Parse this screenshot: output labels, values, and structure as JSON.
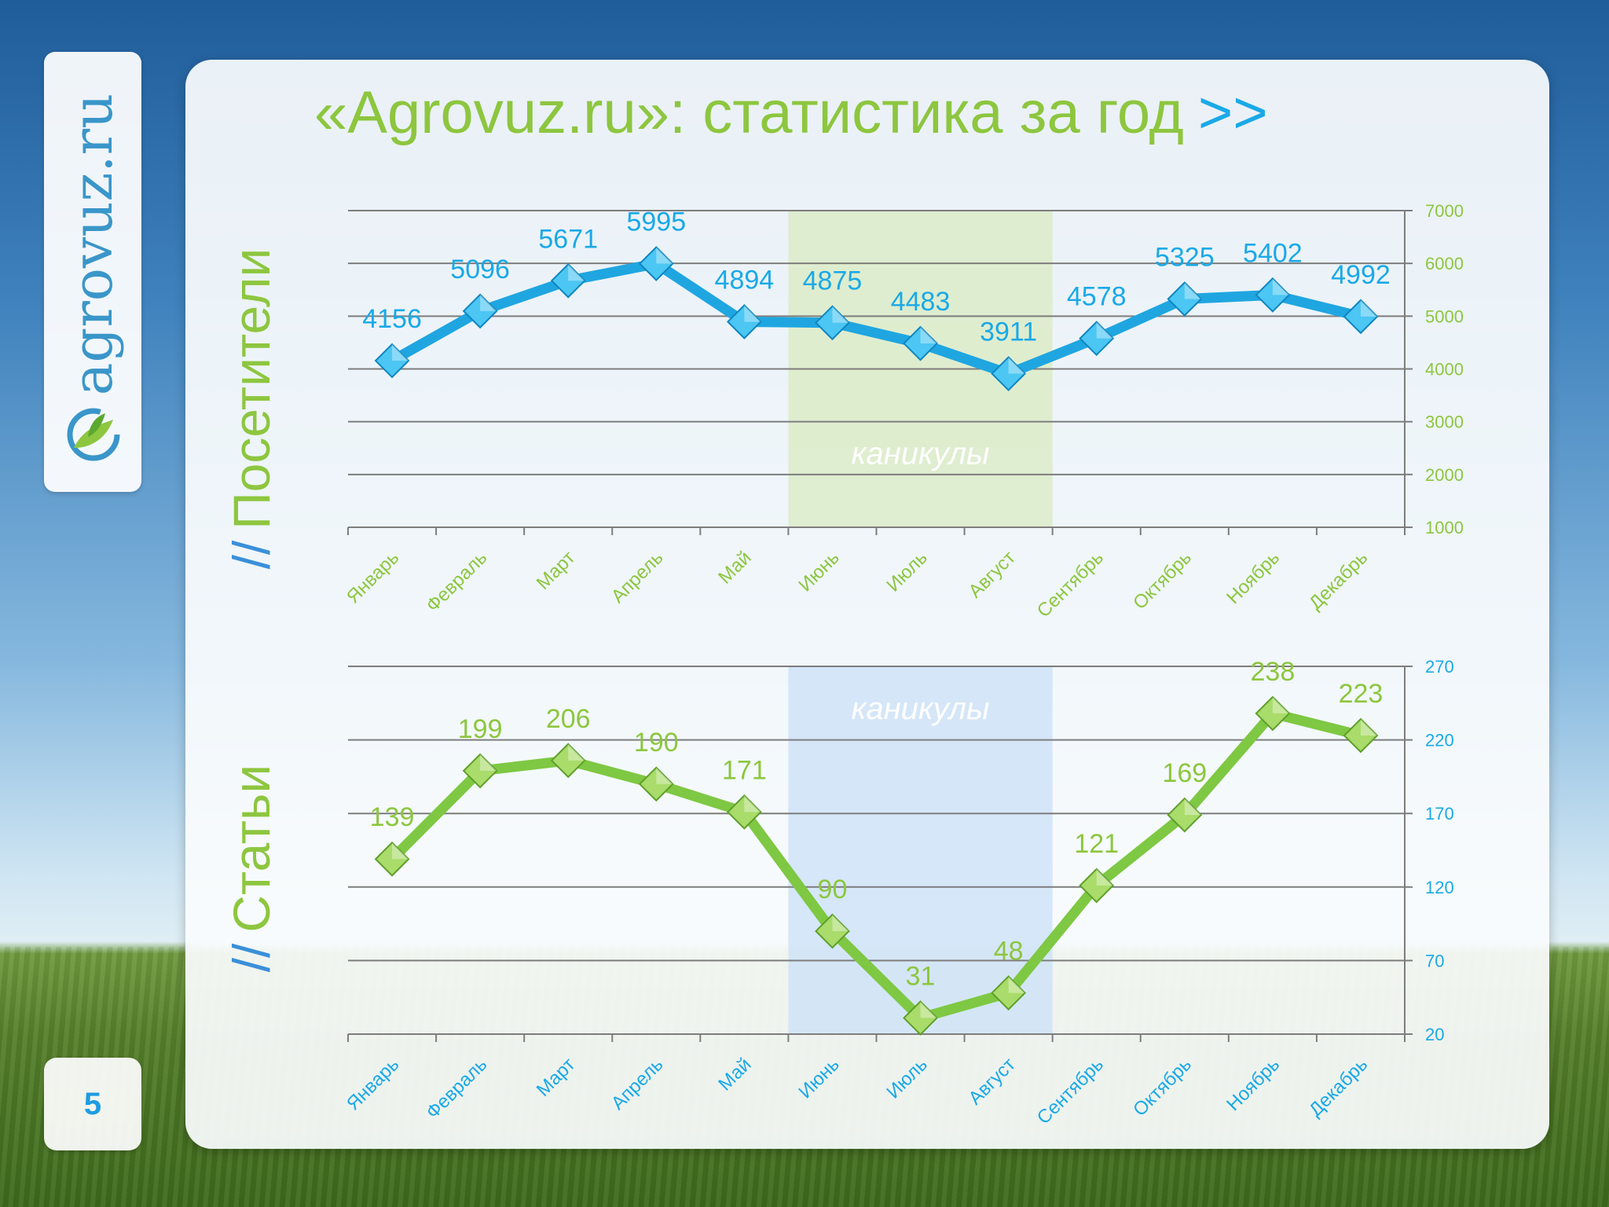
{
  "slide": {
    "title": "«Agrovuz.ru»: статистика за год",
    "title_arrows": ">>",
    "logo_text": "agrovuz.ru",
    "page_number": "5",
    "label_visitors": "Посетители",
    "label_articles": "Статьи",
    "label_prefix": "//"
  },
  "colors": {
    "green": "#8dc63f",
    "blue": "#1aa9e8",
    "visitors_line": "#1fa6e0",
    "articles_line": "#7ec843",
    "holiday_visitors": "#dcebc8",
    "holiday_articles": "#cfe3f7"
  },
  "chart_data": [
    {
      "type": "line",
      "name": "visitors",
      "categories": [
        "Январь",
        "Февраль",
        "Март",
        "Апрель",
        "Май",
        "Июнь",
        "Июль",
        "Август",
        "Сентябрь",
        "Октябрь",
        "Ноябрь",
        "Декабрь"
      ],
      "values": [
        4156,
        5096,
        5671,
        5995,
        4894,
        4875,
        4483,
        3911,
        4578,
        5325,
        5402,
        4992
      ],
      "ylim": [
        1000,
        7000
      ],
      "yticks": [
        1000,
        2000,
        3000,
        4000,
        5000,
        6000,
        7000
      ],
      "y_axis_side": "right",
      "grid": true,
      "band": {
        "label": "каникулы",
        "from": "Июнь",
        "to": "Август"
      }
    },
    {
      "type": "line",
      "name": "articles",
      "categories": [
        "Январь",
        "Февраль",
        "Март",
        "Апрель",
        "Май",
        "Июнь",
        "Июль",
        "Август",
        "Сентябрь",
        "Октябрь",
        "Ноябрь",
        "Декабрь"
      ],
      "values": [
        139,
        199,
        206,
        190,
        171,
        90,
        31,
        48,
        121,
        169,
        238,
        223
      ],
      "ylim": [
        20,
        270
      ],
      "yticks": [
        20,
        70,
        120,
        170,
        220,
        270
      ],
      "y_axis_side": "right",
      "grid": true,
      "band": {
        "label": "каникулы",
        "from": "Июнь",
        "to": "Август"
      }
    }
  ]
}
